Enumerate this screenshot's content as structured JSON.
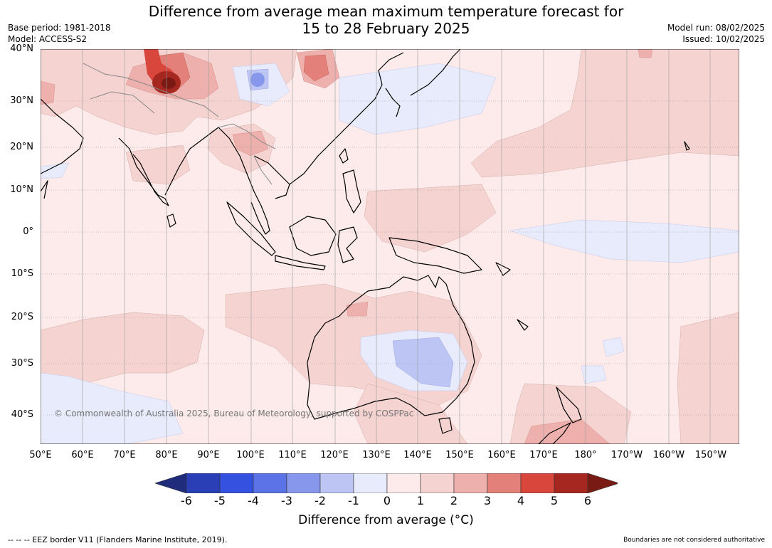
{
  "title_line1": "Difference from average mean maximum temperature forecast for",
  "title_line2": "15 to 28 February 2025",
  "base_period": "Base period: 1981-2018",
  "model": "Model: ACCESS-S2",
  "model_run": "Model run: 08/02/2025",
  "issued": "Issued: 10/02/2025",
  "copyright": "© Commonwealth of Australia 2025, Bureau of Meteorology, supported by COSPPac",
  "lat_labels": [
    "40°N",
    "30°N",
    "20°N",
    "10°N",
    "0°",
    "10°S",
    "20°S",
    "30°S",
    "40°S"
  ],
  "lon_labels": [
    "50°E",
    "60°E",
    "70°E",
    "80°E",
    "90°E",
    "100°E",
    "110°E",
    "120°E",
    "130°E",
    "140°E",
    "150°E",
    "160°E",
    "170°E",
    "180°",
    "170°W",
    "160°W",
    "150°W"
  ],
  "colorbar": {
    "label": "Difference from average (°C)",
    "ticks": [
      "-6",
      "-5",
      "-4",
      "-3",
      "-2",
      "-1",
      "0",
      "1",
      "2",
      "3",
      "4",
      "5",
      "6"
    ],
    "colors": [
      "#1f2c7c",
      "#2a3fb5",
      "#3451e0",
      "#5b73e6",
      "#8798ec",
      "#bcc5f4",
      "#e8ebfb",
      "#fcebea",
      "#f4d3d1",
      "#eeb0ac",
      "#e4807a",
      "#d9463c",
      "#a6271f",
      "#7a1a14"
    ]
  },
  "footer_left": "--  --  -- EEZ border V11 (Flanders Marine Institute, 2019).",
  "footer_right": "Boundaries are not considered authoritative"
}
